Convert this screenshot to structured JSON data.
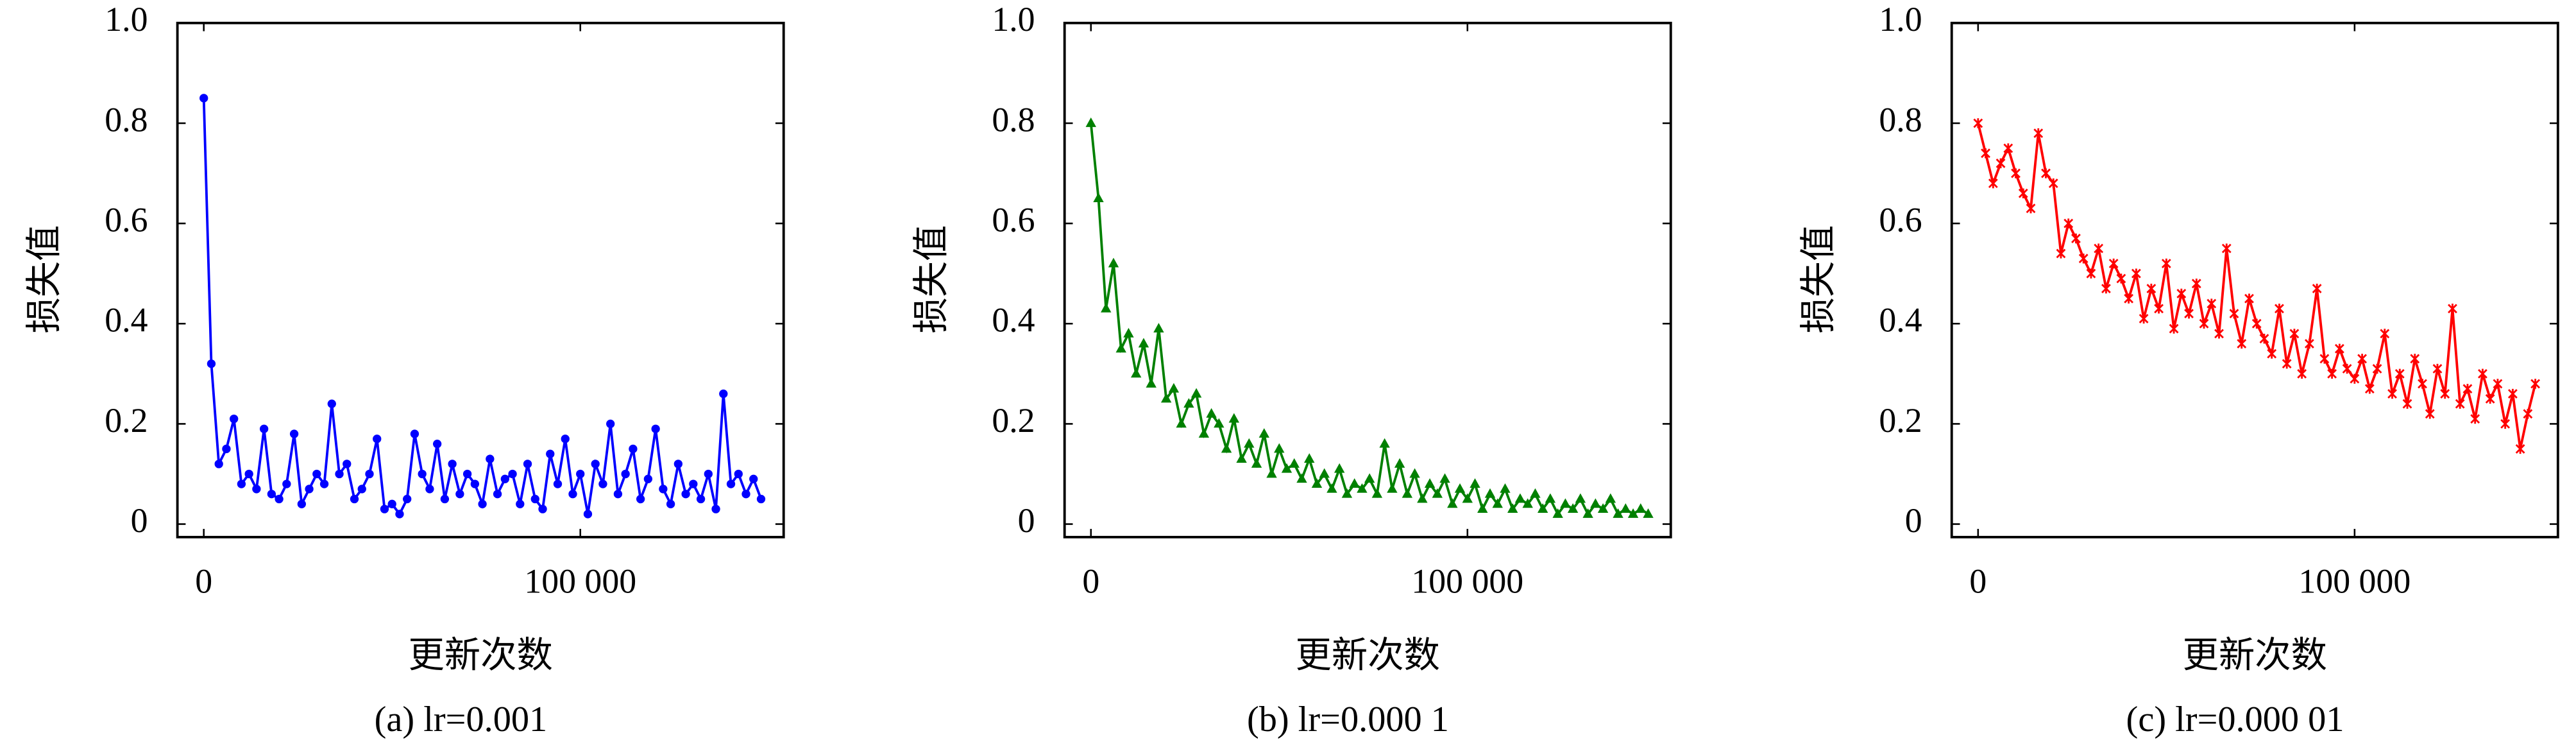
{
  "chart_data": [
    {
      "type": "line",
      "caption": "(a) lr=0.001",
      "xlabel": "更新次数",
      "ylabel": "损失值",
      "marker": "circle",
      "xlim": [
        -7000,
        154000
      ],
      "ylim": [
        -0.026,
        1.0
      ],
      "xticks": [
        0,
        {
          "value": 100000,
          "label": "100 000"
        }
      ],
      "yticks": [
        0,
        0.2,
        0.4,
        0.6,
        0.8,
        {
          "value": 1,
          "label": "1.0"
        }
      ],
      "series": [
        {
          "color": "#0000ff",
          "x": [
            0,
            2000,
            4000,
            6000,
            8000,
            10000,
            12000,
            14000,
            16000,
            18000,
            20000,
            22000,
            24000,
            26000,
            28000,
            30000,
            32000,
            34000,
            36000,
            38000,
            40000,
            42000,
            44000,
            46000,
            48000,
            50000,
            52000,
            54000,
            56000,
            58000,
            60000,
            62000,
            64000,
            66000,
            68000,
            70000,
            72000,
            74000,
            76000,
            78000,
            80000,
            82000,
            84000,
            86000,
            88000,
            90000,
            92000,
            94000,
            96000,
            98000,
            100000,
            102000,
            104000,
            106000,
            108000,
            110000,
            112000,
            114000,
            116000,
            118000,
            120000,
            122000,
            124000,
            126000,
            128000,
            130000,
            132000,
            134000,
            136000,
            138000,
            140000,
            142000,
            144000,
            146000,
            148000
          ],
          "values": [
            0.85,
            0.32,
            0.12,
            0.15,
            0.21,
            0.08,
            0.1,
            0.07,
            0.19,
            0.06,
            0.05,
            0.08,
            0.18,
            0.04,
            0.07,
            0.1,
            0.08,
            0.24,
            0.1,
            0.12,
            0.05,
            0.07,
            0.1,
            0.17,
            0.03,
            0.04,
            0.02,
            0.05,
            0.18,
            0.1,
            0.07,
            0.16,
            0.05,
            0.12,
            0.06,
            0.1,
            0.08,
            0.04,
            0.13,
            0.06,
            0.09,
            0.1,
            0.04,
            0.12,
            0.05,
            0.03,
            0.14,
            0.08,
            0.17,
            0.06,
            0.1,
            0.02,
            0.12,
            0.08,
            0.2,
            0.06,
            0.1,
            0.15,
            0.05,
            0.09,
            0.19,
            0.07,
            0.04,
            0.12,
            0.06,
            0.08,
            0.05,
            0.1,
            0.03,
            0.26,
            0.08,
            0.1,
            0.06,
            0.09,
            0.05
          ]
        }
      ]
    },
    {
      "type": "line",
      "caption": "(b) lr=0.000 1",
      "xlabel": "更新次数",
      "ylabel": "损失值",
      "marker": "triangle",
      "xlim": [
        -7000,
        154000
      ],
      "ylim": [
        -0.026,
        1.0
      ],
      "xticks": [
        0,
        {
          "value": 100000,
          "label": "100 000"
        }
      ],
      "yticks": [
        0,
        0.2,
        0.4,
        0.6,
        0.8,
        {
          "value": 1,
          "label": "1.0"
        }
      ],
      "series": [
        {
          "color": "#008000",
          "x": [
            0,
            2000,
            4000,
            6000,
            8000,
            10000,
            12000,
            14000,
            16000,
            18000,
            20000,
            22000,
            24000,
            26000,
            28000,
            30000,
            32000,
            34000,
            36000,
            38000,
            40000,
            42000,
            44000,
            46000,
            48000,
            50000,
            52000,
            54000,
            56000,
            58000,
            60000,
            62000,
            64000,
            66000,
            68000,
            70000,
            72000,
            74000,
            76000,
            78000,
            80000,
            82000,
            84000,
            86000,
            88000,
            90000,
            92000,
            94000,
            96000,
            98000,
            100000,
            102000,
            104000,
            106000,
            108000,
            110000,
            112000,
            114000,
            116000,
            118000,
            120000,
            122000,
            124000,
            126000,
            128000,
            130000,
            132000,
            134000,
            136000,
            138000,
            140000,
            142000,
            144000,
            146000,
            148000
          ],
          "values": [
            0.8,
            0.65,
            0.43,
            0.52,
            0.35,
            0.38,
            0.3,
            0.36,
            0.28,
            0.39,
            0.25,
            0.27,
            0.2,
            0.24,
            0.26,
            0.18,
            0.22,
            0.2,
            0.15,
            0.21,
            0.13,
            0.16,
            0.12,
            0.18,
            0.1,
            0.15,
            0.11,
            0.12,
            0.09,
            0.13,
            0.08,
            0.1,
            0.07,
            0.11,
            0.06,
            0.08,
            0.07,
            0.09,
            0.06,
            0.16,
            0.07,
            0.12,
            0.06,
            0.1,
            0.05,
            0.08,
            0.06,
            0.09,
            0.04,
            0.07,
            0.05,
            0.08,
            0.03,
            0.06,
            0.04,
            0.07,
            0.03,
            0.05,
            0.04,
            0.06,
            0.03,
            0.05,
            0.02,
            0.04,
            0.03,
            0.05,
            0.02,
            0.04,
            0.03,
            0.05,
            0.02,
            0.03,
            0.02,
            0.03,
            0.02
          ]
        }
      ]
    },
    {
      "type": "line",
      "caption": "(c) lr=0.000 01",
      "xlabel": "更新次数",
      "ylabel": "损失值",
      "marker": "x",
      "xlim": [
        -7000,
        154000
      ],
      "ylim": [
        -0.026,
        1.0
      ],
      "xticks": [
        0,
        {
          "value": 100000,
          "label": "100 000"
        }
      ],
      "yticks": [
        0,
        0.2,
        0.4,
        0.6,
        0.8,
        {
          "value": 1,
          "label": "1.0"
        }
      ],
      "series": [
        {
          "color": "#ff0000",
          "x": [
            0,
            2000,
            4000,
            6000,
            8000,
            10000,
            12000,
            14000,
            16000,
            18000,
            20000,
            22000,
            24000,
            26000,
            28000,
            30000,
            32000,
            34000,
            36000,
            38000,
            40000,
            42000,
            44000,
            46000,
            48000,
            50000,
            52000,
            54000,
            56000,
            58000,
            60000,
            62000,
            64000,
            66000,
            68000,
            70000,
            72000,
            74000,
            76000,
            78000,
            80000,
            82000,
            84000,
            86000,
            88000,
            90000,
            92000,
            94000,
            96000,
            98000,
            100000,
            102000,
            104000,
            106000,
            108000,
            110000,
            112000,
            114000,
            116000,
            118000,
            120000,
            122000,
            124000,
            126000,
            128000,
            130000,
            132000,
            134000,
            136000,
            138000,
            140000,
            142000,
            144000,
            146000,
            148000
          ],
          "values": [
            0.8,
            0.74,
            0.68,
            0.72,
            0.75,
            0.7,
            0.66,
            0.63,
            0.78,
            0.7,
            0.68,
            0.54,
            0.6,
            0.57,
            0.53,
            0.5,
            0.55,
            0.47,
            0.52,
            0.49,
            0.45,
            0.5,
            0.41,
            0.47,
            0.43,
            0.52,
            0.39,
            0.46,
            0.42,
            0.48,
            0.4,
            0.44,
            0.38,
            0.55,
            0.42,
            0.36,
            0.45,
            0.4,
            0.37,
            0.34,
            0.43,
            0.32,
            0.38,
            0.3,
            0.36,
            0.47,
            0.33,
            0.3,
            0.35,
            0.31,
            0.29,
            0.33,
            0.27,
            0.31,
            0.38,
            0.26,
            0.3,
            0.24,
            0.33,
            0.28,
            0.22,
            0.31,
            0.26,
            0.43,
            0.24,
            0.27,
            0.21,
            0.3,
            0.25,
            0.28,
            0.2,
            0.26,
            0.15,
            0.22,
            0.28
          ]
        }
      ]
    }
  ]
}
